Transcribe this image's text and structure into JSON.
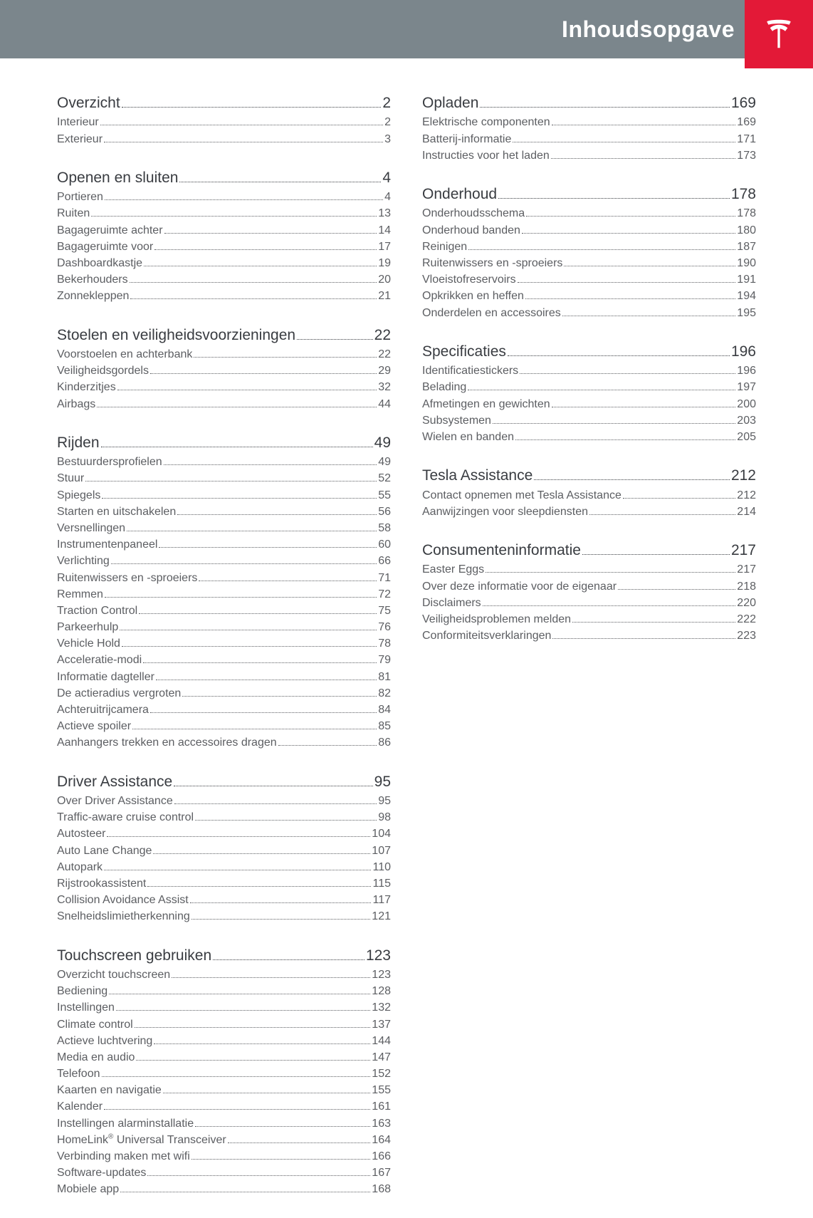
{
  "header": {
    "title": "Inhoudsopgave"
  },
  "colors": {
    "header_bg": "#7b868c",
    "logo_bg": "#e31937",
    "heading_text": "#393c41",
    "sub_text": "#5c5e62",
    "leader": "#5c5e62"
  },
  "typography": {
    "header_title_size": 32,
    "heading_size": 21,
    "sub_size": 16,
    "font_family": "Gotham / Helvetica Neue"
  },
  "toc": {
    "left": [
      {
        "title": "Overzicht",
        "page": "2",
        "items": [
          {
            "label": "Interieur",
            "page": "2"
          },
          {
            "label": "Exterieur",
            "page": "3"
          }
        ]
      },
      {
        "title": "Openen en sluiten",
        "page": "4",
        "items": [
          {
            "label": "Portieren",
            "page": "4"
          },
          {
            "label": "Ruiten",
            "page": "13"
          },
          {
            "label": "Bagageruimte achter",
            "page": "14"
          },
          {
            "label": "Bagageruimte voor",
            "page": "17"
          },
          {
            "label": "Dashboardkastje",
            "page": "19"
          },
          {
            "label": "Bekerhouders",
            "page": "20"
          },
          {
            "label": "Zonnekleppen",
            "page": "21"
          }
        ]
      },
      {
        "title": "Stoelen en veiligheidsvoorzieningen",
        "page": "22",
        "items": [
          {
            "label": "Voorstoelen en achterbank",
            "page": "22"
          },
          {
            "label": "Veiligheidsgordels",
            "page": "29"
          },
          {
            "label": "Kinderzitjes",
            "page": "32"
          },
          {
            "label": "Airbags",
            "page": "44"
          }
        ]
      },
      {
        "title": "Rijden",
        "page": "49",
        "items": [
          {
            "label": "Bestuurdersprofielen",
            "page": "49"
          },
          {
            "label": "Stuur",
            "page": "52"
          },
          {
            "label": "Spiegels",
            "page": "55"
          },
          {
            "label": "Starten en uitschakelen",
            "page": "56"
          },
          {
            "label": "Versnellingen",
            "page": "58"
          },
          {
            "label": "Instrumentenpaneel",
            "page": "60"
          },
          {
            "label": "Verlichting",
            "page": "66"
          },
          {
            "label": "Ruitenwissers en -sproeiers",
            "page": "71"
          },
          {
            "label": "Remmen",
            "page": "72"
          },
          {
            "label": "Traction Control",
            "page": "75"
          },
          {
            "label": "Parkeerhulp",
            "page": "76"
          },
          {
            "label": "Vehicle Hold",
            "page": "78"
          },
          {
            "label": "Acceleratie-modi",
            "page": "79"
          },
          {
            "label": "Informatie dagteller",
            "page": "81"
          },
          {
            "label": "De actieradius vergroten",
            "page": "82"
          },
          {
            "label": "Achteruitrijcamera",
            "page": "84"
          },
          {
            "label": "Actieve spoiler",
            "page": "85"
          },
          {
            "label": "Aanhangers trekken en accessoires dragen",
            "page": "86"
          }
        ]
      },
      {
        "title": "Driver Assistance",
        "page": "95",
        "items": [
          {
            "label": "Over Driver Assistance",
            "page": "95"
          },
          {
            "label": "Traffic-aware cruise control",
            "page": "98"
          },
          {
            "label": "Autosteer",
            "page": "104"
          },
          {
            "label": "Auto Lane Change",
            "page": "107"
          },
          {
            "label": "Autopark",
            "page": "110"
          },
          {
            "label": "Rijstrookassistent",
            "page": "115"
          },
          {
            "label": "Collision Avoidance Assist",
            "page": "117"
          },
          {
            "label": "Snelheidslimietherkenning",
            "page": "121"
          }
        ]
      },
      {
        "title": "Touchscreen gebruiken",
        "page": "123",
        "items": [
          {
            "label": "Overzicht touchscreen",
            "page": "123"
          },
          {
            "label": "Bediening",
            "page": "128"
          },
          {
            "label": "Instellingen",
            "page": "132"
          },
          {
            "label": "Climate control",
            "page": "137"
          },
          {
            "label": "Actieve luchtvering",
            "page": "144"
          },
          {
            "label": "Media en audio",
            "page": "147"
          },
          {
            "label": "Telefoon",
            "page": "152"
          },
          {
            "label": "Kaarten en navigatie",
            "page": "155"
          },
          {
            "label": "Kalender",
            "page": "161"
          },
          {
            "label": "Instellingen alarminstallatie",
            "page": "163"
          },
          {
            "label": "HomeLink® Universal Transceiver",
            "page": "164"
          },
          {
            "label": "Verbinding maken met wifi",
            "page": "166"
          },
          {
            "label": "Software-updates",
            "page": "167"
          },
          {
            "label": "Mobiele app",
            "page": "168"
          }
        ]
      }
    ],
    "right": [
      {
        "title": "Opladen",
        "page": "169",
        "items": [
          {
            "label": "Elektrische componenten",
            "page": "169"
          },
          {
            "label": "Batterij-informatie",
            "page": "171"
          },
          {
            "label": "Instructies voor het laden",
            "page": "173"
          }
        ]
      },
      {
        "title": "Onderhoud",
        "page": "178",
        "items": [
          {
            "label": "Onderhoudsschema",
            "page": "178"
          },
          {
            "label": "Onderhoud banden",
            "page": "180"
          },
          {
            "label": "Reinigen",
            "page": "187"
          },
          {
            "label": "Ruitenwissers en -sproeiers",
            "page": "190"
          },
          {
            "label": "Vloeistofreservoirs",
            "page": "191"
          },
          {
            "label": "Opkrikken en heffen",
            "page": "194"
          },
          {
            "label": "Onderdelen en accessoires",
            "page": "195"
          }
        ]
      },
      {
        "title": "Specificaties",
        "page": "196",
        "items": [
          {
            "label": "Identificatiestickers",
            "page": "196"
          },
          {
            "label": "Belading",
            "page": "197"
          },
          {
            "label": "Afmetingen en gewichten",
            "page": "200"
          },
          {
            "label": "Subsystemen",
            "page": "203"
          },
          {
            "label": "Wielen en banden",
            "page": "205"
          }
        ]
      },
      {
        "title": "Tesla Assistance",
        "page": "212",
        "items": [
          {
            "label": "Contact opnemen met Tesla Assistance",
            "page": "212"
          },
          {
            "label": "Aanwijzingen voor sleepdiensten",
            "page": "214"
          }
        ]
      },
      {
        "title": "Consumenteninformatie",
        "page": "217",
        "items": [
          {
            "label": "Easter Eggs",
            "page": "217"
          },
          {
            "label": "Over deze informatie voor de eigenaar",
            "page": "218"
          },
          {
            "label": "Disclaimers",
            "page": "220"
          },
          {
            "label": "Veiligheidsproblemen melden",
            "page": "222"
          },
          {
            "label": "Conformiteitsverklaringen",
            "page": "223"
          }
        ]
      }
    ]
  }
}
